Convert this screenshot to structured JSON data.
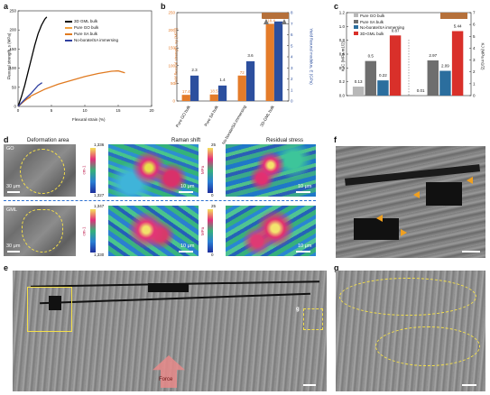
{
  "panels": {
    "a": "a",
    "b": "b",
    "c": "c",
    "d": "d",
    "e": "e",
    "f": "f",
    "g": "g"
  },
  "panel_a": {
    "ylabel": "Flexural strength, s (MPa)",
    "xlabel": "Flexural strain (%)",
    "legend": [
      "3D GML bulk",
      "Pure GO bulk",
      "Pure SA bulk",
      "No-borate/SA immersing"
    ]
  },
  "panel_b": {
    "ylabel_left": "Yield flexural strength, sy (MPa)",
    "ylabel_right": "Yield flexural modulus, E (GPa)"
  },
  "panel_c": {
    "ylabel_left": "KJC (MPa m1/2)",
    "ylabel_right": "KJ (MPa m1/2)",
    "legend": [
      "Pure GO bulk",
      "Pure SA bulk",
      "No-borate/SA immersing",
      "3D-GML bulk"
    ]
  },
  "panel_d": {
    "col_titles": [
      "Deformation area",
      "Raman shift",
      "Residual stress"
    ],
    "row1_label": "GO",
    "row2_label": "GML",
    "row1_cbar1": [
      "1,336",
      "1,327"
    ],
    "row1_cbar2": [
      "25",
      "0"
    ],
    "row2_cbar1": [
      "1,347",
      "1,330"
    ],
    "row2_cbar2": [
      "25",
      "0"
    ],
    "cbar1_unit": "cm-1",
    "cbar2_unit": "MPa",
    "scale_30": "30 μm",
    "scale_10": "10 μm"
  },
  "panel_e": {
    "force": "Force",
    "marker_g": "g"
  },
  "chart_data": [
    {
      "type": "line",
      "title": "",
      "xlabel": "Flexural strain (%)",
      "ylabel": "Flexural strength, s (MPa)",
      "xlim": [
        0,
        20
      ],
      "ylim": [
        0,
        250
      ],
      "xticks": [
        0,
        5,
        10,
        15,
        20
      ],
      "yticks": [
        0,
        50,
        100,
        150,
        200,
        250
      ],
      "series": [
        {
          "name": "3D GML bulk",
          "color": "#000000",
          "x": [
            0,
            0.5,
            1,
            1.5,
            2,
            2.5,
            3,
            3.5,
            4,
            4.3
          ],
          "y": [
            0,
            25,
            55,
            90,
            125,
            160,
            190,
            212,
            228,
            234
          ]
        },
        {
          "name": "Pure GO bulk",
          "color": "#f0a040",
          "x": [
            0,
            0.5,
            1,
            1.5,
            1.9
          ],
          "y": [
            0,
            8,
            15,
            21,
            24
          ]
        },
        {
          "name": "Pure SA bulk",
          "color": "#e07a20",
          "x": [
            0,
            1,
            2,
            4,
            6,
            8,
            10,
            12,
            14,
            15,
            16
          ],
          "y": [
            0,
            15,
            28,
            45,
            58,
            68,
            78,
            86,
            92,
            93,
            88
          ]
        },
        {
          "name": "No-borate/SA immersing",
          "color": "#3040a0",
          "x": [
            0,
            1,
            2,
            3,
            3.6
          ],
          "y": [
            0,
            18,
            35,
            55,
            62
          ]
        }
      ]
    },
    {
      "type": "bar",
      "title": "",
      "categories": [
        "Pure GO bulk",
        "Pure SA bulk",
        "No-borate/SA immersing",
        "3D-GML bulk"
      ],
      "series": [
        {
          "name": "Yield flexural strength",
          "axis": "left",
          "color": "#e47c2a",
          "values": [
            17.4,
            18.5,
            72.0,
            218.4
          ],
          "ylim": [
            0,
            250
          ]
        },
        {
          "name": "Yield flexural modulus",
          "axis": "right",
          "color": "#2c4f9e",
          "values": [
            2.3,
            1.4,
            3.6,
            7.2
          ],
          "ylim": [
            0,
            8
          ]
        }
      ]
    },
    {
      "type": "bar",
      "title": "",
      "groups": [
        "KJC",
        "KJ"
      ],
      "series": [
        {
          "name": "Pure GO bulk",
          "color": "#b8b8b8",
          "values": [
            0.13,
            0.01
          ]
        },
        {
          "name": "Pure SA bulk",
          "color": "#6e6e6e",
          "values": [
            0.5,
            2.97
          ]
        },
        {
          "name": "No-borate/SA immersing",
          "color": "#2b6e9e",
          "values": [
            0.22,
            2.09
          ]
        },
        {
          "name": "3D-GML bulk",
          "color": "#d9302a",
          "values": [
            0.87,
            5.44
          ]
        }
      ],
      "left_ylim": [
        0,
        1.2
      ],
      "right_ylim": [
        0,
        7
      ]
    }
  ]
}
